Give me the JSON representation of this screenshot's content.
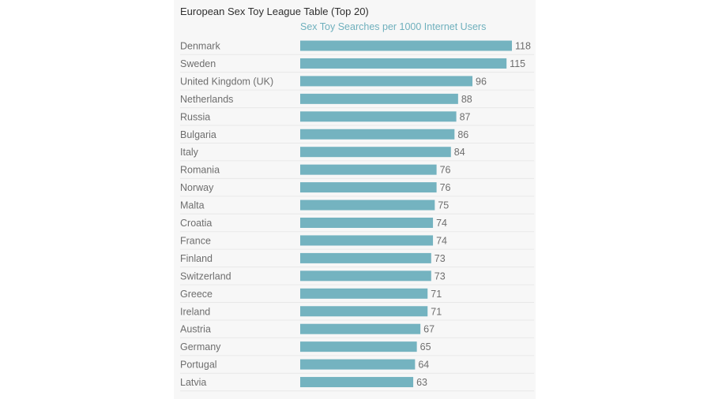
{
  "chart_data": {
    "type": "bar",
    "orientation": "horizontal",
    "title": "European Sex Toy League Table (Top 20)",
    "series": [
      {
        "name": "Sex Toy Searches per 1000 Internet Users",
        "values": [
          118,
          115,
          96,
          88,
          87,
          86,
          84,
          76,
          76,
          75,
          74,
          74,
          73,
          73,
          71,
          71,
          67,
          65,
          64,
          63
        ]
      }
    ],
    "categories": [
      "Denmark",
      "Sweden",
      "United Kingdom (UK)",
      "Netherlands",
      "Russia",
      "Bulgaria",
      "Italy",
      "Romania",
      "Norway",
      "Malta",
      "Croatia",
      "France",
      "Finland",
      "Switzerland",
      "Greece",
      "Ireland",
      "Austria",
      "Germany",
      "Portugal",
      "Latvia"
    ],
    "xlim": [
      0,
      125
    ],
    "grid": true,
    "colors": {
      "bar": "#74b3c0",
      "series_label": "#6fb0bd",
      "panel": "#f7f7f7"
    }
  }
}
